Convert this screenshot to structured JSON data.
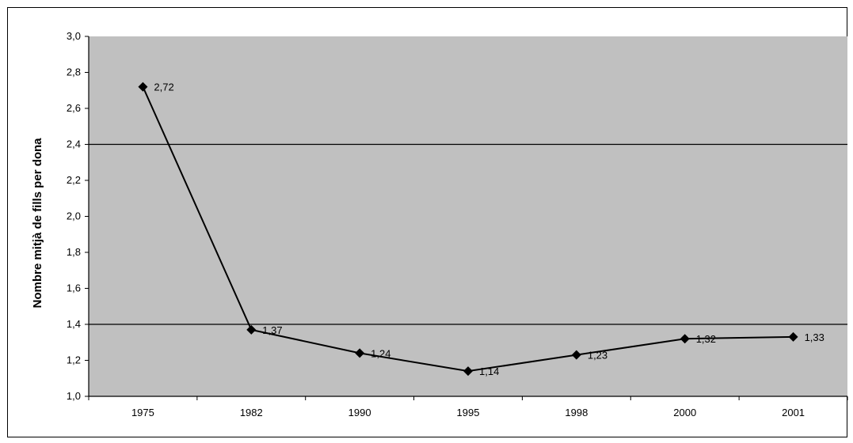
{
  "chart_data": {
    "type": "line",
    "title": "",
    "xlabel": "",
    "ylabel": "Nombre mitjà de fills per dona",
    "categories": [
      "1975",
      "1982",
      "1990",
      "1995",
      "1998",
      "2000",
      "2001"
    ],
    "series": [
      {
        "values": [
          2.72,
          1.37,
          1.24,
          1.14,
          1.23,
          1.32,
          1.33
        ],
        "data_labels": [
          "2,72",
          "1,37",
          "1,24",
          "1,14",
          "1,23",
          "1,32",
          "1,33"
        ],
        "color": "#000000",
        "marker": "diamond"
      }
    ],
    "ylim": [
      1.0,
      3.0
    ],
    "y_ticks": [
      1.0,
      1.2,
      1.4,
      1.6,
      1.8,
      2.0,
      2.2,
      2.4,
      2.6,
      2.8,
      3.0
    ],
    "y_tick_labels": [
      "1,0",
      "1,2",
      "1,4",
      "1,6",
      "1,8",
      "2,0",
      "2,2",
      "2,4",
      "2,6",
      "2,8",
      "3,0"
    ],
    "gridlines_y": [
      1.4,
      2.4
    ],
    "plot_background": "#c0c0c0",
    "legend": "none"
  }
}
